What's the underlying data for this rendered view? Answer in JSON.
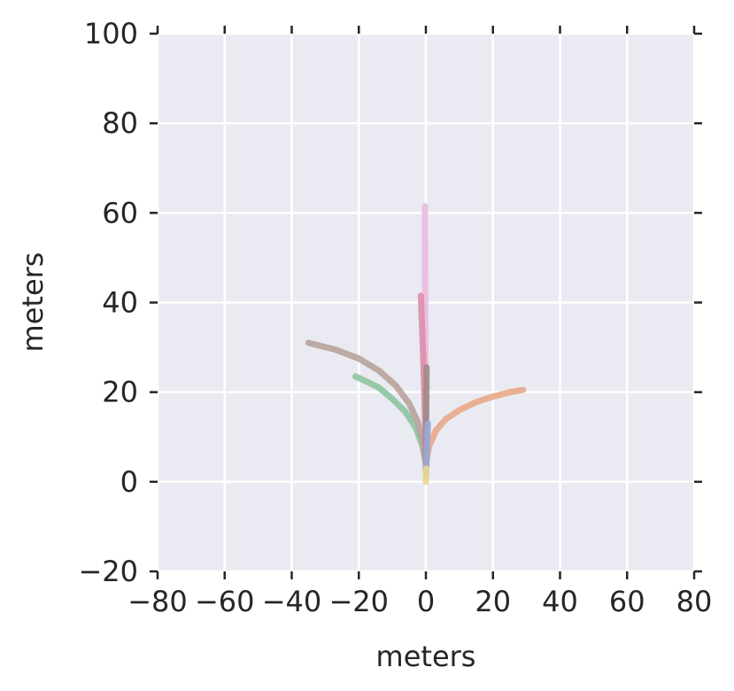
{
  "chart_data": {
    "type": "line",
    "title": "",
    "xlabel": "meters",
    "ylabel": "meters",
    "xlim": [
      -80,
      80
    ],
    "ylim": [
      -20,
      100
    ],
    "xticks": [
      -80,
      -60,
      -40,
      -20,
      0,
      20,
      40,
      60,
      80
    ],
    "yticks": [
      -20,
      0,
      20,
      40,
      60,
      80,
      100
    ],
    "xtick_labels": [
      "−80",
      "−60",
      "−40",
      "−20",
      "0",
      "20",
      "40",
      "60",
      "80"
    ],
    "ytick_labels": [
      "−20",
      "0",
      "20",
      "40",
      "60",
      "80",
      "100"
    ],
    "grid": true,
    "legend": "none",
    "background": "#EAEAF2",
    "series": [
      {
        "color": "#e8a987",
        "x": [
          0,
          1,
          3,
          6,
          10,
          15,
          20,
          25,
          29
        ],
        "y": [
          4,
          8,
          11.5,
          14,
          16,
          17.8,
          19,
          20,
          20.5
        ]
      },
      {
        "color": "#8cc5a0",
        "x": [
          0,
          -1,
          -3,
          -6,
          -10,
          -14,
          -18,
          -21
        ],
        "y": [
          4,
          8,
          12,
          15.5,
          18.5,
          21,
          22.5,
          23.5
        ]
      },
      {
        "color": "#b8a39b",
        "x": [
          0,
          -1,
          -2.5,
          -5,
          -9,
          -14,
          -20,
          -27,
          -35
        ],
        "y": [
          4,
          9,
          13.5,
          17.5,
          21.5,
          24.8,
          27.5,
          29.5,
          31
        ]
      },
      {
        "color": "#ecb8de",
        "x": [
          0,
          -0.1,
          -0.2,
          -0.3
        ],
        "y": [
          4,
          20,
          40,
          61.5
        ]
      },
      {
        "color": "#db8ea8",
        "x": [
          0,
          -0.3,
          -0.8,
          -1.5
        ],
        "y": [
          4,
          15,
          28,
          41.5
        ]
      },
      {
        "color": "#a08b8a",
        "x": [
          0,
          0.1,
          0.2
        ],
        "y": [
          2,
          14,
          25.5
        ]
      },
      {
        "color": "#9aa8d8",
        "x": [
          0,
          0.3,
          0.6
        ],
        "y": [
          1,
          7,
          13
        ]
      },
      {
        "color": "#edd98a",
        "x": [
          0,
          0,
          0.1
        ],
        "y": [
          0,
          1.5,
          3
        ]
      }
    ]
  }
}
